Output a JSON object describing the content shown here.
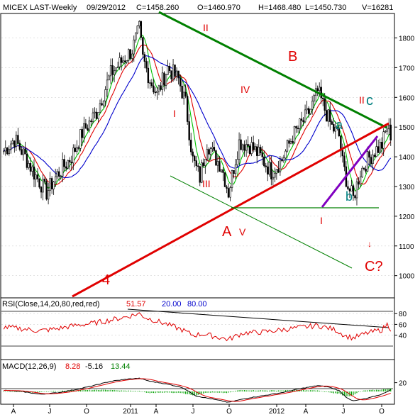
{
  "header": {
    "symbol": "MICEX LAST-Weekly",
    "date": "09/29/2012",
    "close": "C=1458.260",
    "open": "O=1460.970",
    "high": "H=1468.480",
    "low": "L=1450.730",
    "volume": "V=16281"
  },
  "rsi_label": {
    "name": "RSI(Close,14,20,80,red,red)",
    "value": "51.57",
    "low": "20.00",
    "high": "80.00"
  },
  "macd_label": {
    "name": "MACD(12,26,9)",
    "macd": "8.28",
    "signal": "-5.16",
    "hist": "13.44"
  },
  "annotations": {
    "wave_II_top": "II",
    "wave_I_left": "I",
    "wave_III": "III",
    "wave_IV": "IV",
    "wave_V": "V",
    "wave_A": "A",
    "wave_B": "B",
    "wave_4": "4",
    "wave_I_right": "I",
    "wave_II_right": "II",
    "wave_a": "a",
    "wave_b": "b",
    "wave_c": "c",
    "wave_C": "C?",
    "arrow": "↓"
  },
  "colors": {
    "up": "#000000",
    "down": "#000000",
    "ma_green": "#00c000",
    "ma_red": "#e00000",
    "ma_blue": "#0000cc",
    "trend_green": "#008000",
    "trend_red": "#e00000",
    "trend_purple": "#8000c0",
    "wave_red": "#e00000",
    "wave_teal": "#008080",
    "rsi_line": "#e00000",
    "macd_line": "#000000",
    "signal_line": "#e00000",
    "hist_bar": "#00a000"
  },
  "chart_data": {
    "type": "candlestick",
    "title": "MICEX LAST-Weekly",
    "price_axis": {
      "ylim": [
        930,
        1880
      ],
      "ticks": [
        1000,
        1100,
        1200,
        1300,
        1400,
        1500,
        1600,
        1700,
        1800
      ]
    },
    "x_axis": {
      "labels": [
        "A",
        "J",
        "O",
        "2011",
        "A",
        "J",
        "O",
        "2012",
        "A",
        "J",
        "O"
      ]
    },
    "price_anchors": [
      [
        0,
        1420
      ],
      [
        6,
        1460
      ],
      [
        12,
        1400
      ],
      [
        17,
        1345
      ],
      [
        24,
        1280
      ],
      [
        30,
        1340
      ],
      [
        38,
        1400
      ],
      [
        44,
        1480
      ],
      [
        52,
        1550
      ],
      [
        60,
        1680
      ],
      [
        66,
        1720
      ],
      [
        72,
        1760
      ],
      [
        76,
        1830
      ],
      [
        78,
        1730
      ],
      [
        82,
        1660
      ],
      [
        86,
        1610
      ],
      [
        92,
        1700
      ],
      [
        98,
        1660
      ],
      [
        102,
        1580
      ],
      [
        106,
        1390
      ],
      [
        110,
        1330
      ],
      [
        114,
        1450
      ],
      [
        118,
        1400
      ],
      [
        122,
        1370
      ],
      [
        126,
        1280
      ],
      [
        132,
        1450
      ],
      [
        138,
        1440
      ],
      [
        144,
        1400
      ],
      [
        150,
        1350
      ],
      [
        156,
        1390
      ],
      [
        162,
        1470
      ],
      [
        168,
        1520
      ],
      [
        172,
        1560
      ],
      [
        176,
        1620
      ],
      [
        180,
        1560
      ],
      [
        184,
        1500
      ],
      [
        188,
        1470
      ],
      [
        190,
        1380
      ],
      [
        193,
        1300
      ],
      [
        196,
        1260
      ],
      [
        200,
        1350
      ],
      [
        204,
        1390
      ],
      [
        208,
        1420
      ],
      [
        212,
        1440
      ],
      [
        215,
        1500
      ],
      [
        217,
        1475
      ]
    ],
    "rsi": {
      "ylim": [
        0,
        100
      ],
      "ticks": [
        40,
        60,
        80
      ],
      "anchors": [
        [
          0,
          55
        ],
        [
          10,
          52
        ],
        [
          20,
          48
        ],
        [
          30,
          52
        ],
        [
          40,
          58
        ],
        [
          50,
          62
        ],
        [
          60,
          68
        ],
        [
          70,
          75
        ],
        [
          76,
          80
        ],
        [
          80,
          72
        ],
        [
          90,
          62
        ],
        [
          100,
          50
        ],
        [
          106,
          40
        ],
        [
          112,
          42
        ],
        [
          118,
          38
        ],
        [
          126,
          32
        ],
        [
          134,
          44
        ],
        [
          146,
          46
        ],
        [
          156,
          50
        ],
        [
          166,
          54
        ],
        [
          176,
          58
        ],
        [
          186,
          50
        ],
        [
          192,
          38
        ],
        [
          196,
          35
        ],
        [
          204,
          44
        ],
        [
          212,
          50
        ],
        [
          215,
          60
        ],
        [
          217,
          52
        ]
      ]
    },
    "macd": {
      "ticks": [
        20
      ],
      "anchors": [
        [
          0,
          5
        ],
        [
          10,
          0
        ],
        [
          20,
          -12
        ],
        [
          30,
          -6
        ],
        [
          40,
          8
        ],
        [
          50,
          25
        ],
        [
          60,
          45
        ],
        [
          70,
          55
        ],
        [
          76,
          58
        ],
        [
          82,
          45
        ],
        [
          90,
          35
        ],
        [
          100,
          18
        ],
        [
          108,
          -20
        ],
        [
          118,
          -35
        ],
        [
          126,
          -48
        ],
        [
          136,
          -30
        ],
        [
          146,
          -18
        ],
        [
          156,
          -5
        ],
        [
          166,
          12
        ],
        [
          176,
          26
        ],
        [
          182,
          20
        ],
        [
          188,
          4
        ],
        [
          192,
          -25
        ],
        [
          196,
          -42
        ],
        [
          204,
          -30
        ],
        [
          212,
          -12
        ],
        [
          217,
          8
        ]
      ]
    },
    "moving_averages": [
      "green",
      "red",
      "blue"
    ]
  }
}
